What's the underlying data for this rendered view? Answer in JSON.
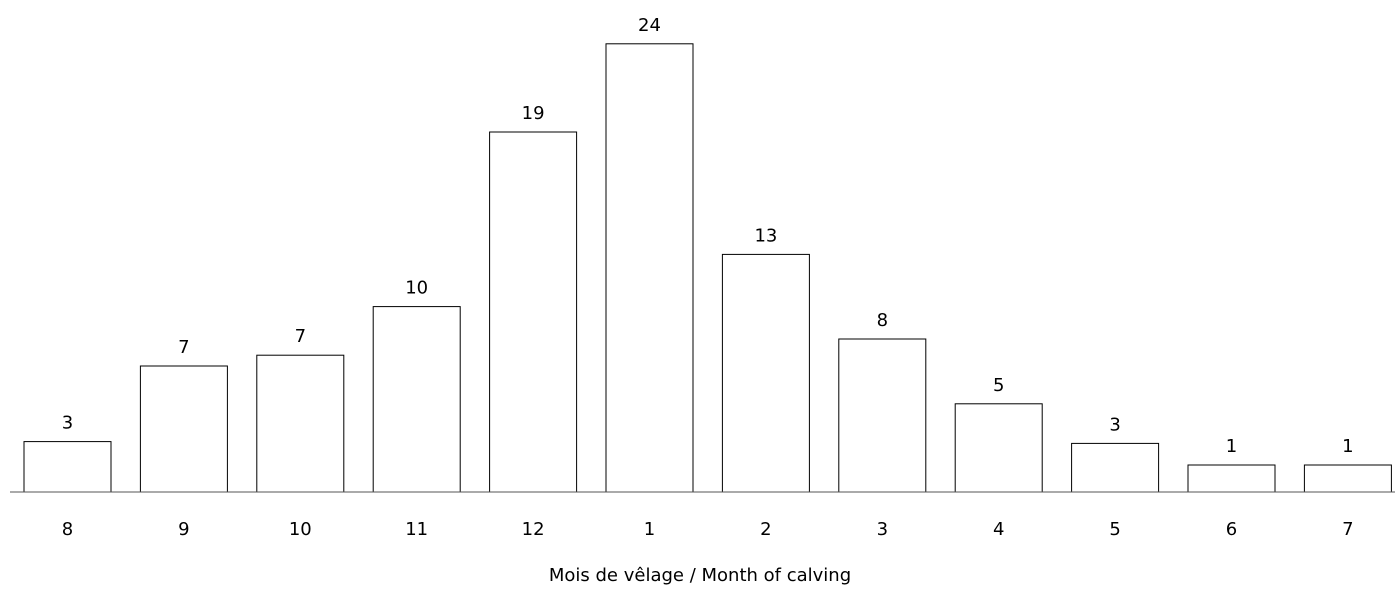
{
  "chart_data": {
    "type": "bar",
    "title": "",
    "xlabel": "Mois de vêlage / Month of calving",
    "ylabel": "",
    "categories": [
      "8",
      "9",
      "10",
      "11",
      "12",
      "1",
      "2",
      "3",
      "4",
      "5",
      "6",
      "7"
    ],
    "values": [
      3,
      7,
      7,
      10,
      19,
      24,
      13,
      8,
      5,
      3,
      1,
      1
    ],
    "bar_heights_visual": [
      2.8,
      7.0,
      7.6,
      10.3,
      20.0,
      24.9,
      13.2,
      8.5,
      4.9,
      2.7,
      1.5,
      1.5
    ],
    "ylim": [
      0,
      26
    ],
    "grid": false,
    "bar_color": "#ffffff",
    "bar_stroke": "#000000",
    "axis_color": "#555555"
  }
}
